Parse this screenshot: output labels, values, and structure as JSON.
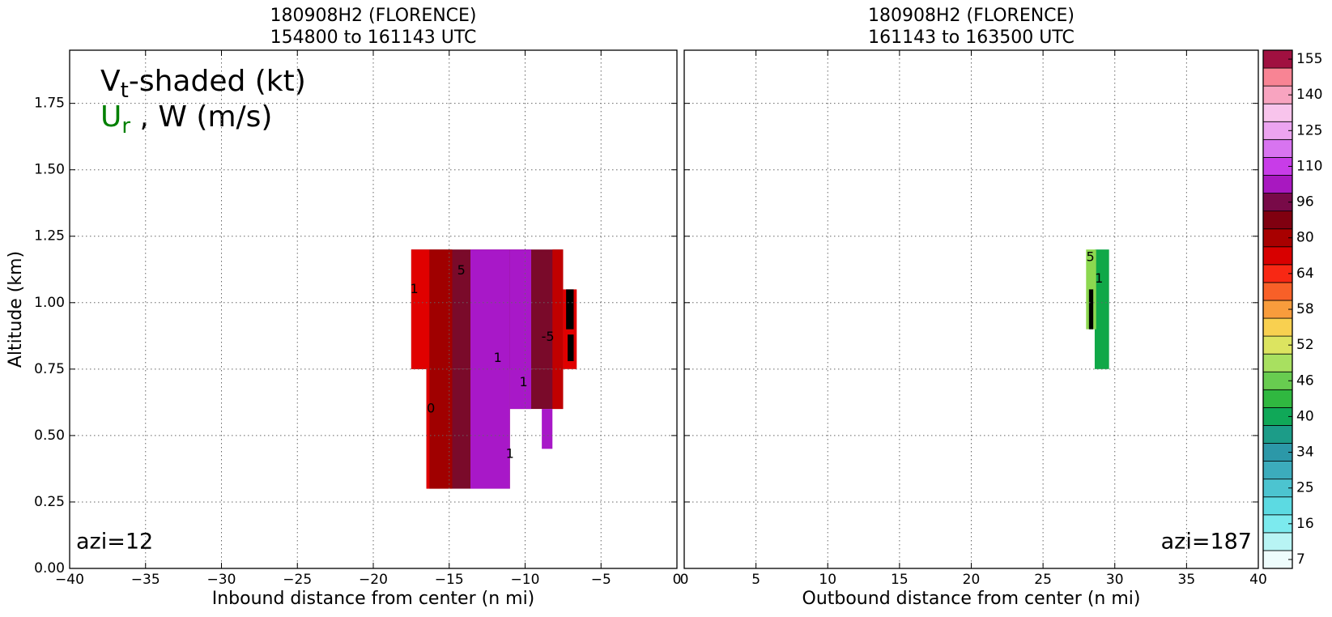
{
  "chart_data": [
    {
      "type": "contourf",
      "title_lines": [
        "180908H2 (FLORENCE)",
        "154800 to 161143 UTC"
      ],
      "xlabel": "Inbound distance from center (n mi)",
      "ylabel": "Altitude (km)",
      "legend_line1": [
        "V",
        "t",
        "-shaded (kt)"
      ],
      "legend_line2": [
        "U",
        "r",
        " , W (m/s)"
      ],
      "legend_color2": "green",
      "annotation": "azi=12",
      "xlim": [
        -40,
        0
      ],
      "xticks": [
        {
          "value": -40,
          "label": "−40"
        },
        {
          "value": -35,
          "label": "−35"
        },
        {
          "value": -30,
          "label": "−30"
        },
        {
          "value": -25,
          "label": "−25"
        },
        {
          "value": -20,
          "label": "−20"
        },
        {
          "value": -15,
          "label": "−15"
        },
        {
          "value": -10,
          "label": "−10"
        },
        {
          "value": -5,
          "label": "−5"
        },
        0
      ],
      "ylim": [
        0,
        1.95
      ],
      "yticks": [
        {
          "value": 0,
          "label": "0.00"
        },
        {
          "value": 0.25,
          "label": "0.25"
        },
        {
          "value": 0.5,
          "label": "0.50"
        },
        {
          "value": 0.75,
          "label": "0.75"
        },
        {
          "value": 1,
          "label": "1.00"
        },
        {
          "value": 1.25,
          "label": "1.25"
        },
        {
          "value": 1.5,
          "label": "1.50"
        },
        {
          "value": 1.75,
          "label": "1.75"
        }
      ],
      "grid": true,
      "shading": [
        {
          "x": [
            -17.5,
            -7.5
          ],
          "y": [
            0.75,
            1.2
          ],
          "color": "#7a0a2a"
        },
        {
          "x": [
            -16.5,
            -11
          ],
          "y": [
            0.3,
            0.75
          ],
          "color": "#7a0a2a"
        },
        {
          "x": [
            -11,
            -7.5
          ],
          "y": [
            0.6,
            0.75
          ],
          "color": "#7a0a2a"
        },
        {
          "x": [
            -17.5,
            -16.3
          ],
          "y": [
            0.75,
            1.2
          ],
          "color": "#e00000"
        },
        {
          "x": [
            -16.5,
            -15.6
          ],
          "y": [
            0.3,
            0.75
          ],
          "color": "#e00000"
        },
        {
          "x": [
            -16.3,
            -14.8
          ],
          "y": [
            0.3,
            1.2
          ],
          "color": "#a00000"
        },
        {
          "x": [
            -13.6,
            -11
          ],
          "y": [
            0.3,
            1.2
          ],
          "color": "#a818c8"
        },
        {
          "x": [
            -11,
            -9.6
          ],
          "y": [
            0.6,
            1.2
          ],
          "color": "#a818c8"
        },
        {
          "x": [
            -8.9,
            -8.2
          ],
          "y": [
            0.45,
            0.6
          ],
          "color": "#a818c8"
        },
        {
          "x": [
            -8.2,
            -7.5
          ],
          "y": [
            0.6,
            1.2
          ],
          "color": "#c00000"
        },
        {
          "x": [
            -7.5,
            -6.6
          ],
          "y": [
            0.75,
            1.05
          ],
          "color": "#e00000"
        },
        {
          "x": [
            -7.3,
            -6.8
          ],
          "y": [
            0.9,
            1.05
          ],
          "color": "#000000"
        },
        {
          "x": [
            -7.2,
            -6.8
          ],
          "y": [
            0.78,
            0.88
          ],
          "color": "#000000"
        }
      ],
      "contour_labels": [
        {
          "text": "5",
          "x": -14.2,
          "y": 1.12
        },
        {
          "text": "1",
          "x": -17.3,
          "y": 1.05
        },
        {
          "text": "1",
          "x": -11.8,
          "y": 0.79
        },
        {
          "text": "1",
          "x": -10.1,
          "y": 0.7
        },
        {
          "text": "0",
          "x": -16.2,
          "y": 0.6
        },
        {
          "text": "1",
          "x": -11,
          "y": 0.43
        },
        {
          "text": "-5",
          "x": -8.5,
          "y": 0.87
        }
      ]
    },
    {
      "type": "contourf",
      "title_lines": [
        "180908H2 (FLORENCE)",
        "161143 to 163500 UTC"
      ],
      "xlabel": "Outbound distance from center (n mi)",
      "annotation": "azi=187",
      "xlim": [
        0,
        40
      ],
      "xticks": [
        0,
        5,
        10,
        15,
        20,
        25,
        30,
        35,
        40
      ],
      "ylim": [
        0,
        1.95
      ],
      "yticks": [
        0,
        0.25,
        0.5,
        0.75,
        1,
        1.25,
        1.5,
        1.75
      ],
      "grid": true,
      "shading": [
        {
          "x": [
            28.6,
            29.6
          ],
          "y": [
            0.75,
            1.2
          ],
          "color": "#10a848"
        },
        {
          "x": [
            28,
            28.7
          ],
          "y": [
            0.9,
            1.2
          ],
          "color": "#8cd850"
        },
        {
          "x": [
            28.2,
            28.5
          ],
          "y": [
            0.9,
            1.05
          ],
          "color": "#000000"
        }
      ],
      "contour_labels": [
        {
          "text": "1",
          "x": 28.9,
          "y": 1.09
        },
        {
          "text": "5",
          "x": 28.3,
          "y": 1.17
        }
      ],
      "colorbar": {
        "colors": [
          "#eefcfc",
          "#b8f4f4",
          "#7ceaee",
          "#5cdae2",
          "#4cc4d0",
          "#3cacbc",
          "#2c98a8",
          "#1c9c88",
          "#10a858",
          "#30b840",
          "#68cc50",
          "#a8e060",
          "#dce460",
          "#f8d050",
          "#f89c3c",
          "#f86028",
          "#f82814",
          "#d80000",
          "#a80000",
          "#800010",
          "#780a48",
          "#a818c0",
          "#c83ce8",
          "#d874f0",
          "#eca4f0",
          "#f8c4ec",
          "#f8a4c0",
          "#f88494",
          "#a01040"
        ],
        "ticks": [
          7,
          16,
          25,
          34,
          40,
          46,
          52,
          58,
          64,
          80,
          96,
          110,
          125,
          140,
          155
        ]
      }
    }
  ]
}
